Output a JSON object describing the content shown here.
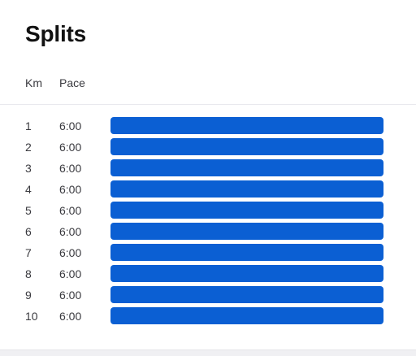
{
  "title": "Splits",
  "columns": {
    "km": "Km",
    "pace": "Pace"
  },
  "colors": {
    "bar": "#0b5fd3"
  },
  "splits": [
    {
      "km": "1",
      "pace": "6:00",
      "relative_pace": 1.0
    },
    {
      "km": "2",
      "pace": "6:00",
      "relative_pace": 1.0
    },
    {
      "km": "3",
      "pace": "6:00",
      "relative_pace": 1.0
    },
    {
      "km": "4",
      "pace": "6:00",
      "relative_pace": 1.0
    },
    {
      "km": "5",
      "pace": "6:00",
      "relative_pace": 1.0
    },
    {
      "km": "6",
      "pace": "6:00",
      "relative_pace": 1.0
    },
    {
      "km": "7",
      "pace": "6:00",
      "relative_pace": 1.0
    },
    {
      "km": "8",
      "pace": "6:00",
      "relative_pace": 1.0
    },
    {
      "km": "9",
      "pace": "6:00",
      "relative_pace": 1.0
    },
    {
      "km": "10",
      "pace": "6:00",
      "relative_pace": 1.0
    }
  ]
}
